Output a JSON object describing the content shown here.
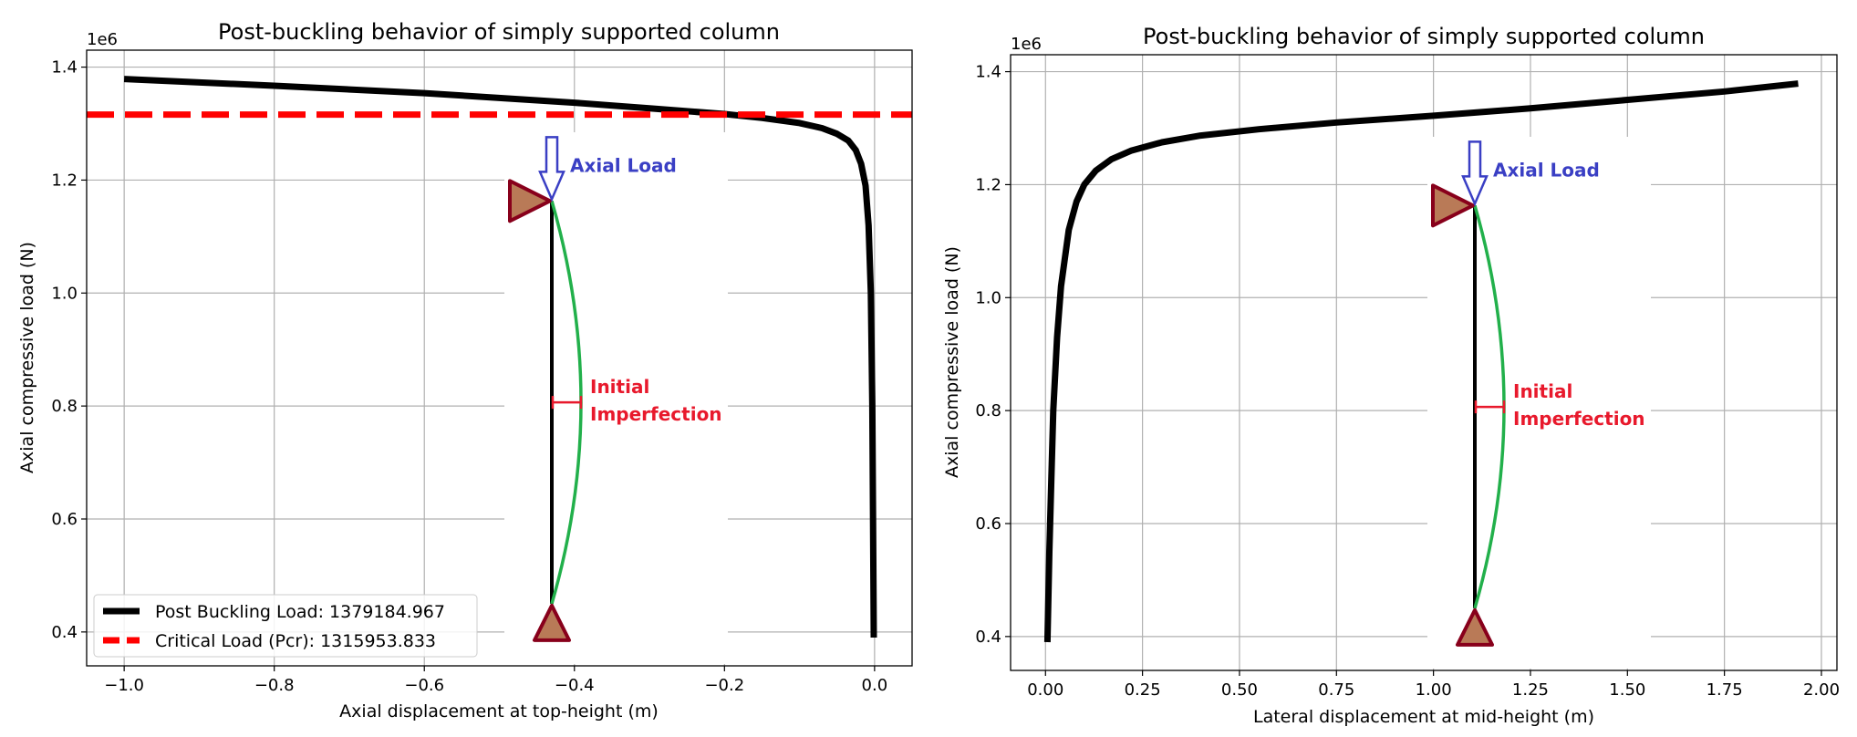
{
  "chart_data": [
    {
      "type": "line",
      "title": "Post-buckling behavior of simply supported column",
      "xlabel": "Axial displacement at top-height (m)",
      "ylabel": "Axial compressive load (N)",
      "y_offset_label": "1e6",
      "xlim": [
        -1.05,
        0.05
      ],
      "ylim": [
        0.34,
        1.43
      ],
      "xticks": [
        -1.0,
        -0.8,
        -0.6,
        -0.4,
        -0.2,
        0.0
      ],
      "xtick_labels": [
        "−1.0",
        "−0.8",
        "−0.6",
        "−0.4",
        "−0.2",
        "0.0"
      ],
      "yticks": [
        0.4,
        0.6,
        0.8,
        1.0,
        1.2,
        1.4
      ],
      "ytick_labels": [
        "0.4",
        "0.6",
        "0.8",
        "1.0",
        "1.2",
        "1.4"
      ],
      "grid": true,
      "series": [
        {
          "name": "Post Buckling Load:  1379184.967",
          "color": "#000000",
          "style": "solid",
          "x": [
            -1.0,
            -0.8,
            -0.6,
            -0.4,
            -0.3,
            -0.2,
            -0.15,
            -0.1,
            -0.07,
            -0.05,
            -0.035,
            -0.025,
            -0.018,
            -0.012,
            -0.008,
            -0.005,
            -0.003,
            -0.002,
            -0.001
          ],
          "y": [
            1.379,
            1.367,
            1.354,
            1.337,
            1.327,
            1.317,
            1.31,
            1.301,
            1.292,
            1.282,
            1.27,
            1.253,
            1.229,
            1.19,
            1.12,
            1.0,
            0.8,
            0.6,
            0.39
          ]
        },
        {
          "name": "Critical Load (Pcr):  1315953.833",
          "color": "#ff0000",
          "style": "dashed",
          "x": [
            -1.05,
            0.05
          ],
          "y": [
            1.316,
            1.316
          ]
        }
      ],
      "legend_position": "lower-left"
    },
    {
      "type": "line",
      "title": "Post-buckling behavior of simply supported column",
      "xlabel": "Lateral displacement at mid-height (m)",
      "ylabel": "Axial compressive load (N)",
      "y_offset_label": "1e6",
      "xlim": [
        -0.09,
        2.04
      ],
      "ylim": [
        0.34,
        1.43
      ],
      "xticks": [
        0.0,
        0.25,
        0.5,
        0.75,
        1.0,
        1.25,
        1.5,
        1.75,
        2.0
      ],
      "xtick_labels": [
        "0.00",
        "0.25",
        "0.50",
        "0.75",
        "1.00",
        "1.25",
        "1.50",
        "1.75",
        "2.00"
      ],
      "yticks": [
        0.4,
        0.6,
        0.8,
        1.0,
        1.2,
        1.4
      ],
      "ytick_labels": [
        "0.4",
        "0.6",
        "0.8",
        "1.0",
        "1.2",
        "1.4"
      ],
      "grid": true,
      "series": [
        {
          "name": "Post Buckling Load",
          "color": "#000000",
          "style": "solid",
          "x": [
            0.005,
            0.01,
            0.015,
            0.02,
            0.03,
            0.04,
            0.06,
            0.08,
            0.1,
            0.13,
            0.17,
            0.22,
            0.3,
            0.4,
            0.55,
            0.75,
            1.0,
            1.25,
            1.5,
            1.75,
            1.94
          ],
          "y": [
            0.39,
            0.55,
            0.68,
            0.8,
            0.93,
            1.02,
            1.12,
            1.17,
            1.2,
            1.225,
            1.245,
            1.26,
            1.275,
            1.287,
            1.298,
            1.31,
            1.322,
            1.335,
            1.35,
            1.365,
            1.379
          ]
        }
      ]
    }
  ],
  "annotations": {
    "axial_load": "Axial Load",
    "imperfection_line1": "Initial",
    "imperfection_line2": "Imperfection"
  }
}
